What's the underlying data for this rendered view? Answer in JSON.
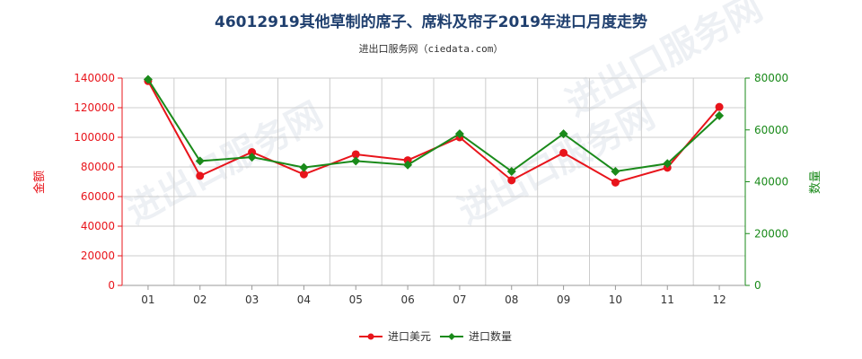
{
  "chart_data": {
    "type": "line",
    "title": "46012919其他草制的席子、席料及帘子2019年进口月度走势",
    "subtitle": "进出口服务网（ciedata.com）",
    "categories": [
      "01",
      "02",
      "03",
      "04",
      "05",
      "06",
      "07",
      "08",
      "09",
      "10",
      "11",
      "12"
    ],
    "series": [
      {
        "name": "进口美元",
        "axis": "left",
        "color": "#e8141b",
        "values": [
          138000,
          74000,
          90000,
          75000,
          88500,
          84500,
          100000,
          71000,
          89500,
          69500,
          79500,
          120500
        ]
      },
      {
        "name": "进口数量",
        "axis": "right",
        "color": "#1a8a1a",
        "values": [
          79500,
          48000,
          49500,
          45500,
          48000,
          46500,
          58500,
          44000,
          58500,
          44000,
          47000,
          65500
        ]
      }
    ],
    "ylabel_left": "金额",
    "ylabel_right": "数量",
    "ylim_left": [
      0,
      140000
    ],
    "ylim_right": [
      0,
      80000
    ],
    "yticks_left": [
      "0",
      "20000",
      "40000",
      "60000",
      "80000",
      "100000",
      "120000",
      "140000"
    ],
    "yticks_right": [
      "0",
      "20000",
      "40000",
      "60000",
      "80000"
    ],
    "grid": true,
    "legend_position": "bottom-center",
    "left_axis_color": "#e8141b",
    "right_axis_color": "#1a8a1a"
  },
  "watermark": "进出口服务网"
}
